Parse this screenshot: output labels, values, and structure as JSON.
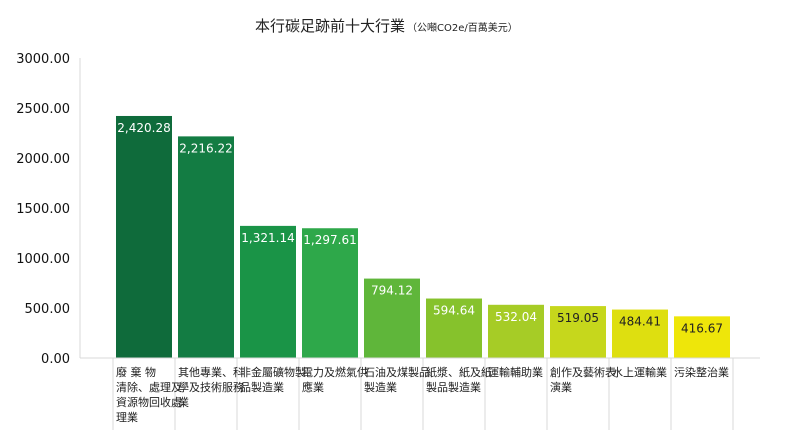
{
  "chart_data": {
    "type": "bar",
    "title": "本行碳足跡前十大行業",
    "subtitle": "（公噸CO2e/百萬美元）",
    "xlabel": "",
    "ylabel": "",
    "ylim": [
      0,
      3000
    ],
    "yticks": [
      "0.00",
      "500.00",
      "1000.00",
      "1500.00",
      "2000.00",
      "2500.00",
      "3000.00"
    ],
    "categories": [
      "廢 棄 物 清除、處理及資源物回收處理業",
      "其他專業、科學及技術服務業",
      "非金屬礦物製品製造業",
      "電力及燃氣供應業",
      "石油及煤製品製造業",
      "紙漿、紙及紙製品製造業",
      "運輸輔助業",
      "創作及藝術表演業",
      "水上運輸業",
      "污染整治業"
    ],
    "values": [
      2420.28,
      2216.22,
      1321.14,
      1297.61,
      794.12,
      594.64,
      532.04,
      519.05,
      484.41,
      416.67
    ],
    "value_labels": [
      "2,420.28",
      "2,216.22",
      "1,321.14",
      "1,297.61",
      "794.12",
      "594.64",
      "532.04",
      "519.05",
      "484.41",
      "416.67"
    ],
    "colors": [
      "#0f6b3b",
      "#137c43",
      "#1a9447",
      "#2ea84a",
      "#5fb63a",
      "#86c22c",
      "#a6cc26",
      "#c6d71c",
      "#dedf10",
      "#eee60a"
    ],
    "label_colors": [
      "#ffffff",
      "#ffffff",
      "#ffffff",
      "#ffffff",
      "#ffffff",
      "#ffffff",
      "#ffffff",
      "#222222",
      "#222222",
      "#222222"
    ],
    "grid": false
  }
}
